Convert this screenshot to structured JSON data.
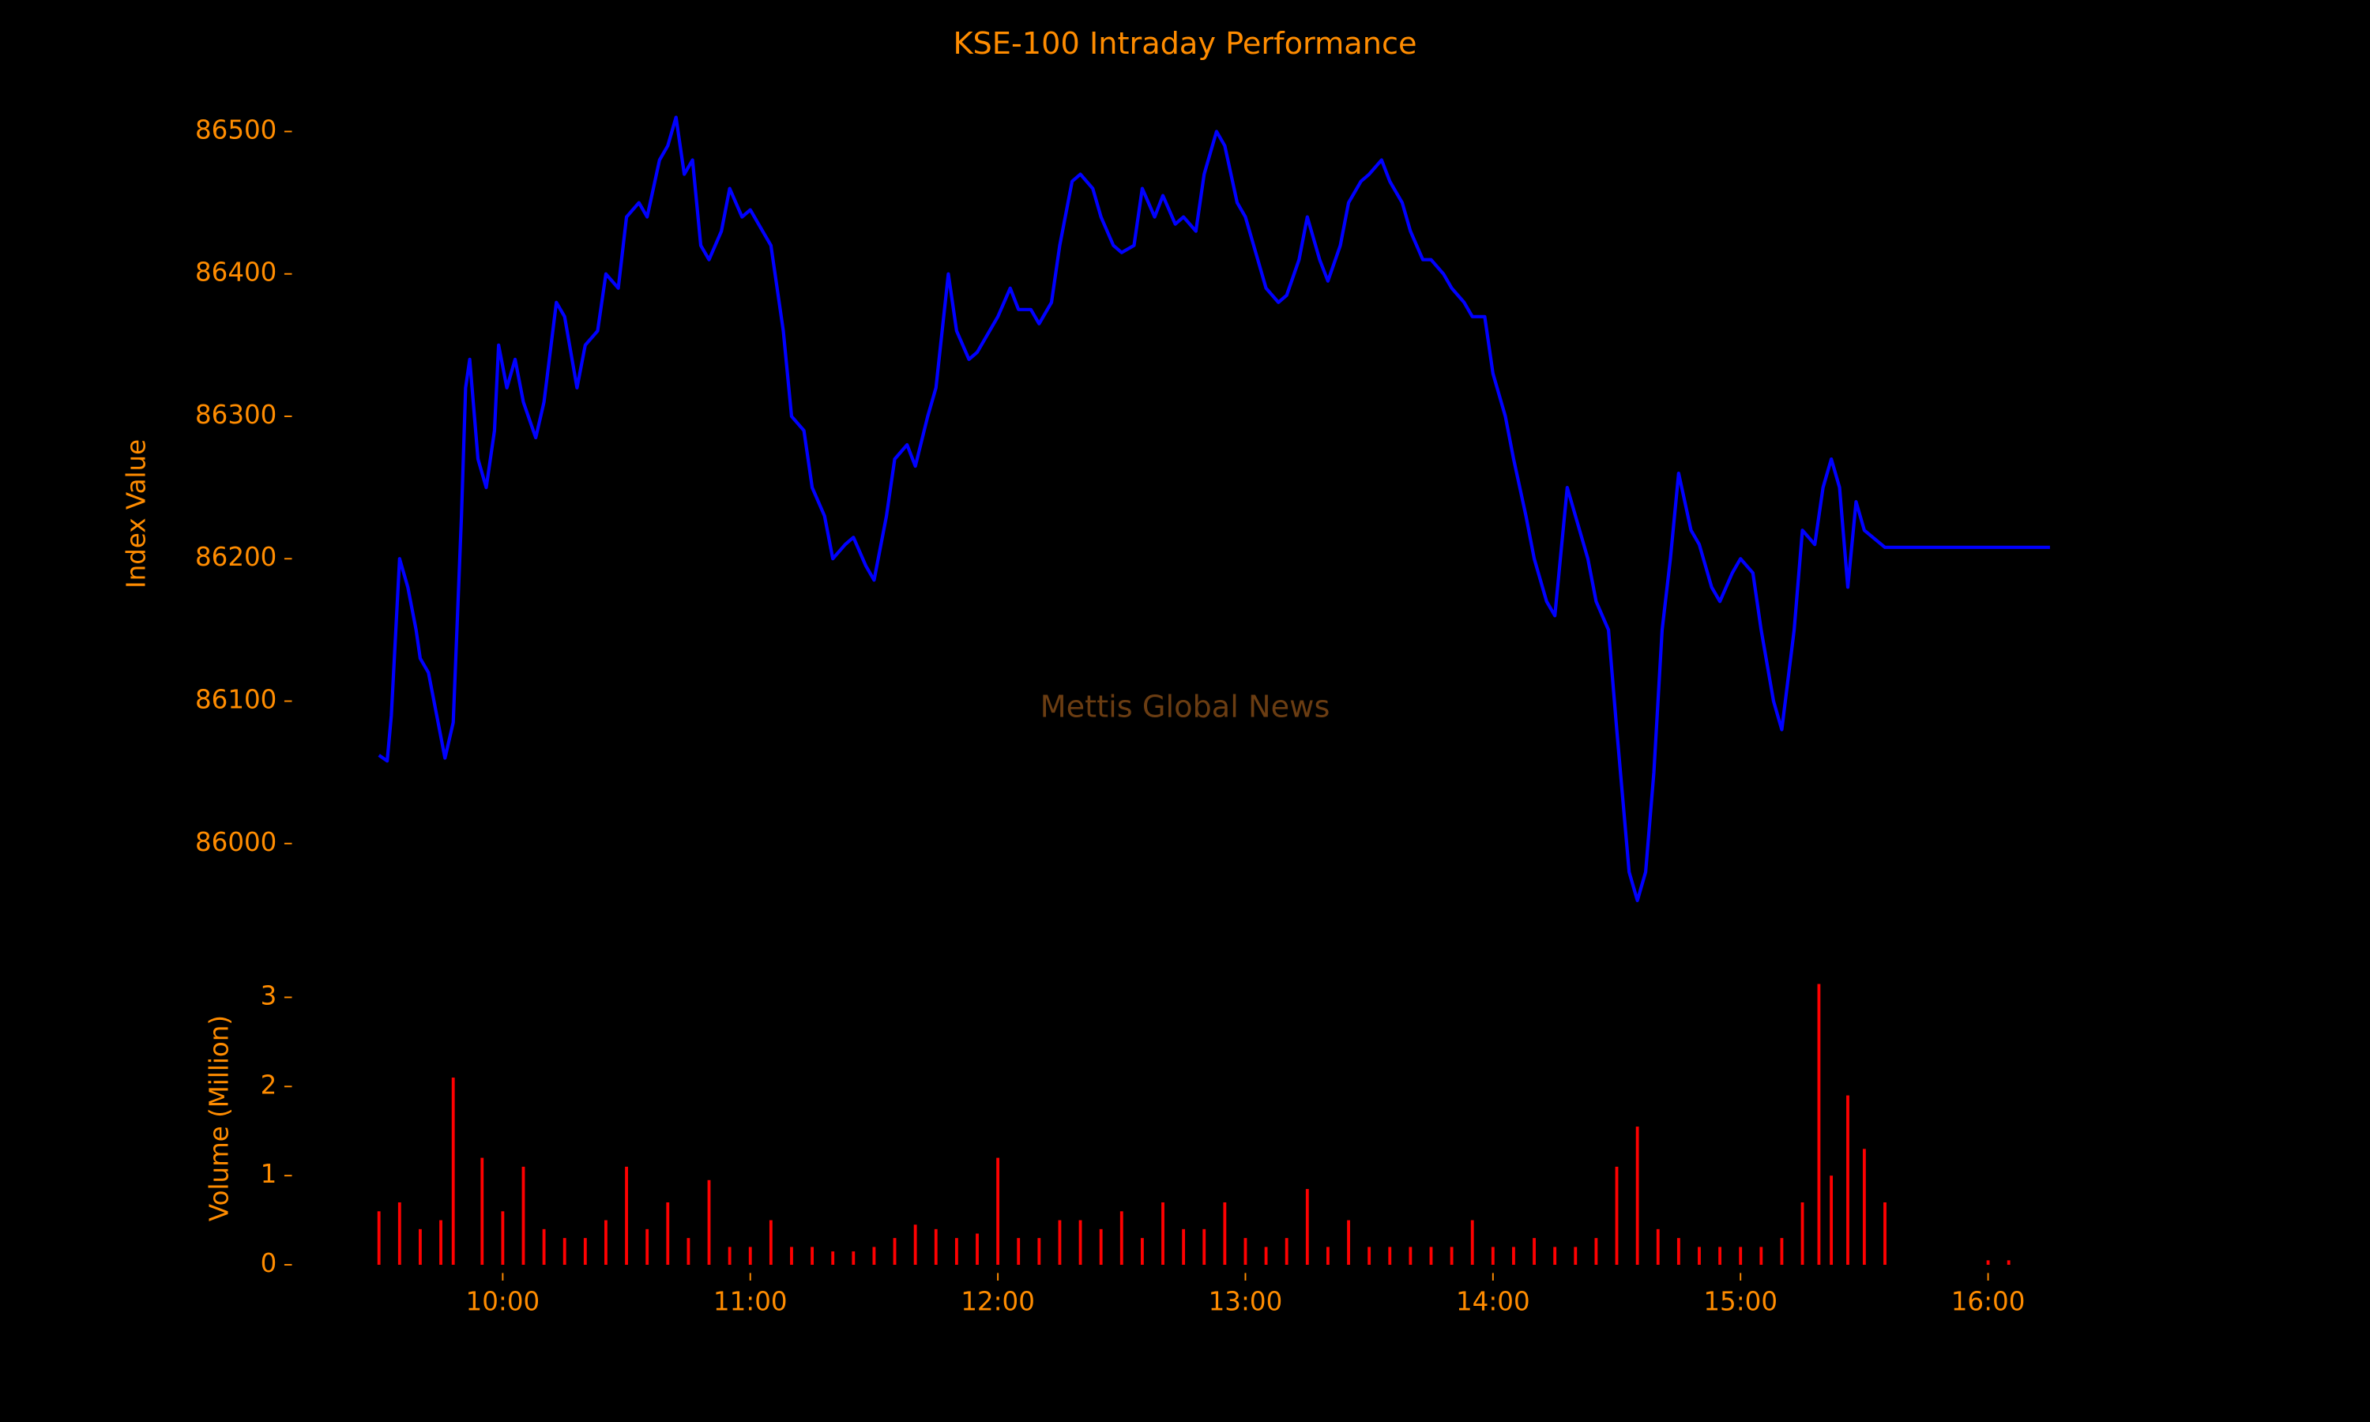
{
  "chart_data": [
    {
      "type": "line",
      "title": "KSE-100 Intraday Performance",
      "ylabel": "Index Value",
      "watermark": "Mettis Global News",
      "color": "#0000ff",
      "x": [
        "09:30",
        "09:32",
        "09:33",
        "09:35",
        "09:37",
        "09:39",
        "09:40",
        "09:42",
        "09:44",
        "09:46",
        "09:48",
        "09:50",
        "09:51",
        "09:52",
        "09:54",
        "09:56",
        "09:58",
        "09:59",
        "10:01",
        "10:03",
        "10:05",
        "10:08",
        "10:10",
        "10:13",
        "10:15",
        "10:18",
        "10:20",
        "10:23",
        "10:25",
        "10:28",
        "10:30",
        "10:33",
        "10:35",
        "10:38",
        "10:40",
        "10:42",
        "10:44",
        "10:46",
        "10:48",
        "10:50",
        "10:53",
        "10:55",
        "10:58",
        "11:00",
        "11:03",
        "11:05",
        "11:08",
        "11:10",
        "11:13",
        "11:15",
        "11:18",
        "11:20",
        "11:23",
        "11:25",
        "11:28",
        "11:30",
        "11:33",
        "11:35",
        "11:38",
        "11:40",
        "11:43",
        "11:45",
        "11:48",
        "11:50",
        "11:53",
        "11:55",
        "11:58",
        "12:00",
        "12:03",
        "12:05",
        "12:08",
        "12:10",
        "12:13",
        "12:15",
        "12:18",
        "12:20",
        "12:23",
        "12:25",
        "12:28",
        "12:30",
        "12:33",
        "12:35",
        "12:38",
        "12:40",
        "12:43",
        "12:45",
        "12:48",
        "12:50",
        "12:53",
        "12:55",
        "12:58",
        "13:00",
        "13:03",
        "13:05",
        "13:08",
        "13:10",
        "13:13",
        "13:15",
        "13:18",
        "13:20",
        "13:23",
        "13:25",
        "13:28",
        "13:30",
        "13:33",
        "13:35",
        "13:38",
        "13:40",
        "13:43",
        "13:45",
        "13:48",
        "13:50",
        "13:53",
        "13:55",
        "13:58",
        "14:00",
        "14:03",
        "14:05",
        "14:08",
        "14:10",
        "14:13",
        "14:15",
        "14:18",
        "14:20",
        "14:23",
        "14:25",
        "14:28",
        "14:30",
        "14:33",
        "14:35",
        "14:37",
        "14:39",
        "14:41",
        "14:43",
        "14:45",
        "14:48",
        "14:50",
        "14:53",
        "14:55",
        "14:58",
        "15:00",
        "15:03",
        "15:05",
        "15:08",
        "15:10",
        "15:13",
        "15:15",
        "15:18",
        "15:20",
        "15:22",
        "15:24",
        "15:26",
        "15:28",
        "15:30",
        "15:35",
        "16:00",
        "16:15"
      ],
      "values": [
        86062,
        86058,
        86090,
        86200,
        86180,
        86150,
        86130,
        86120,
        86090,
        86060,
        86085,
        86230,
        86320,
        86340,
        86270,
        86250,
        86290,
        86350,
        86320,
        86340,
        86310,
        86285,
        86310,
        86380,
        86370,
        86320,
        86350,
        86360,
        86400,
        86390,
        86440,
        86450,
        86440,
        86480,
        86490,
        86510,
        86470,
        86480,
        86420,
        86410,
        86430,
        86460,
        86440,
        86445,
        86430,
        86420,
        86360,
        86300,
        86290,
        86250,
        86230,
        86200,
        86210,
        86215,
        86195,
        86185,
        86230,
        86270,
        86280,
        86265,
        86300,
        86320,
        86400,
        86360,
        86340,
        86345,
        86360,
        86370,
        86390,
        86375,
        86375,
        86365,
        86380,
        86420,
        86465,
        86470,
        86460,
        86440,
        86420,
        86415,
        86420,
        86460,
        86440,
        86455,
        86435,
        86440,
        86430,
        86470,
        86500,
        86490,
        86450,
        86440,
        86410,
        86390,
        86380,
        86385,
        86410,
        86440,
        86410,
        86395,
        86420,
        86450,
        86465,
        86470,
        86480,
        86465,
        86450,
        86430,
        86410,
        86410,
        86400,
        86390,
        86380,
        86370,
        86370,
        86330,
        86300,
        86270,
        86230,
        86200,
        86170,
        86160,
        86250,
        86230,
        86200,
        86170,
        86150,
        86080,
        85980,
        85960,
        85980,
        86050,
        86150,
        86200,
        86260,
        86220,
        86210,
        86180,
        86170,
        86190,
        86200,
        86190,
        86150,
        86100,
        86080,
        86150,
        86220,
        86210,
        86250,
        86270,
        86250,
        86180,
        86240,
        86220,
        86208,
        86208,
        86208
      ],
      "xlim": [
        "09:10",
        "16:35"
      ],
      "ylim": [
        85927,
        86543
      ],
      "yticks": [
        86000,
        86100,
        86200,
        86300,
        86400,
        86500
      ]
    },
    {
      "type": "bar",
      "ylabel": "Volume (Million)",
      "color": "#ff0000",
      "x": [
        "09:30",
        "09:35",
        "09:40",
        "09:45",
        "09:48",
        "09:55",
        "10:00",
        "10:05",
        "10:10",
        "10:15",
        "10:20",
        "10:25",
        "10:30",
        "10:35",
        "10:40",
        "10:45",
        "10:50",
        "10:55",
        "11:00",
        "11:05",
        "11:10",
        "11:15",
        "11:20",
        "11:25",
        "11:30",
        "11:35",
        "11:40",
        "11:45",
        "11:50",
        "11:55",
        "12:00",
        "12:05",
        "12:10",
        "12:15",
        "12:20",
        "12:25",
        "12:30",
        "12:35",
        "12:40",
        "12:45",
        "12:50",
        "12:55",
        "13:00",
        "13:05",
        "13:10",
        "13:15",
        "13:20",
        "13:25",
        "13:30",
        "13:35",
        "13:40",
        "13:45",
        "13:50",
        "13:55",
        "14:00",
        "14:05",
        "14:10",
        "14:15",
        "14:20",
        "14:25",
        "14:30",
        "14:35",
        "14:40",
        "14:45",
        "14:50",
        "14:55",
        "15:00",
        "15:05",
        "15:10",
        "15:15",
        "15:19",
        "15:22",
        "15:26",
        "15:30",
        "15:35",
        "16:00",
        "16:05"
      ],
      "values": [
        0.6,
        0.7,
        0.4,
        0.5,
        2.1,
        1.2,
        0.6,
        1.1,
        0.4,
        0.3,
        0.3,
        0.5,
        1.1,
        0.4,
        0.7,
        0.3,
        0.95,
        0.2,
        0.2,
        0.5,
        0.2,
        0.2,
        0.15,
        0.15,
        0.2,
        0.3,
        0.45,
        0.4,
        0.3,
        0.35,
        1.2,
        0.3,
        0.3,
        0.5,
        0.5,
        0.4,
        0.6,
        0.3,
        0.7,
        0.4,
        0.4,
        0.7,
        0.3,
        0.2,
        0.3,
        0.85,
        0.2,
        0.5,
        0.2,
        0.2,
        0.2,
        0.2,
        0.2,
        0.5,
        0.2,
        0.2,
        0.3,
        0.2,
        0.2,
        0.3,
        1.1,
        1.55,
        0.4,
        0.3,
        0.2,
        0.2,
        0.2,
        0.2,
        0.3,
        0.7,
        3.15,
        1.0,
        1.9,
        1.3,
        0.7,
        0.05,
        0.05
      ],
      "xlim": [
        "09:10",
        "16:35"
      ],
      "ylim": [
        -0.16,
        3.31
      ],
      "yticks": [
        0,
        1,
        2,
        3
      ],
      "xticks": [
        "10:00",
        "11:00",
        "12:00",
        "13:00",
        "14:00",
        "15:00",
        "16:00"
      ]
    }
  ]
}
